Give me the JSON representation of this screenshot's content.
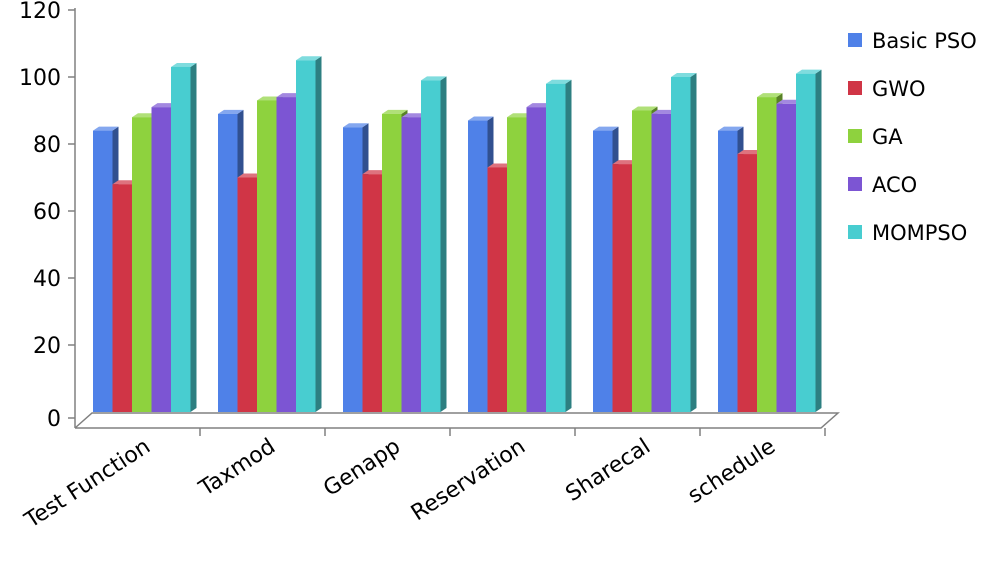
{
  "chart_data": {
    "type": "bar",
    "title": "",
    "xlabel": "",
    "ylabel": "",
    "ylim": [
      0,
      120
    ],
    "yticks": [
      0,
      20,
      40,
      60,
      80,
      100,
      120
    ],
    "categories": [
      "Test Function",
      "Taxmod",
      "Genapp",
      "Reservation",
      "Sharecal",
      "schedule"
    ],
    "series": [
      {
        "name": "Basic PSO",
        "color": "#4f81e8",
        "values": [
          84,
          89,
          85,
          87,
          84,
          84
        ]
      },
      {
        "name": "GWO",
        "color": "#d03546",
        "values": [
          68,
          70,
          71,
          73,
          74,
          77
        ]
      },
      {
        "name": "GA",
        "color": "#8ed23e",
        "values": [
          88,
          93,
          89,
          88,
          90,
          94
        ]
      },
      {
        "name": "ACO",
        "color": "#7c55d3",
        "values": [
          91,
          94,
          88,
          91,
          89,
          92
        ]
      },
      {
        "name": "MOMPSO",
        "color": "#48cdd0",
        "values": [
          103,
          105,
          99,
          98,
          100,
          101
        ]
      }
    ],
    "grid": false,
    "legend": "right",
    "style": "3d-clustered"
  }
}
